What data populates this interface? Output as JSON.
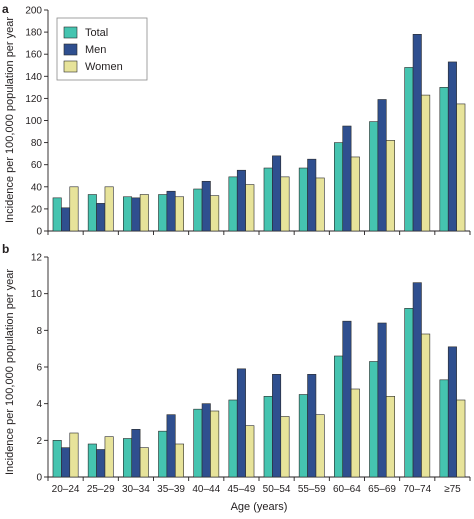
{
  "colors": {
    "Total": "#45c4b0",
    "Men": "#2f4f8f",
    "Women": "#e7e39a",
    "axis": "#231f20",
    "bar_stroke": "#2a2a2a"
  },
  "shared": {
    "xlabel": "Age (years)",
    "categories": [
      "20–24",
      "25–29",
      "30–34",
      "35–39",
      "40–44",
      "45–49",
      "50–54",
      "55–59",
      "60–64",
      "65–69",
      "70–74",
      "≥75"
    ]
  },
  "chart_data": [
    {
      "type": "bar",
      "panel_label": "a",
      "title": "",
      "ylabel": "Incidence per 100,000 population per year",
      "xlabel": "",
      "ylim": [
        0,
        200
      ],
      "yticks": [
        0,
        20,
        40,
        60,
        80,
        100,
        120,
        140,
        160,
        180,
        200
      ],
      "grid": false,
      "legend": "top-left",
      "categories": [
        "20–24",
        "25–29",
        "30–34",
        "35–39",
        "40–44",
        "45–49",
        "50–54",
        "55–59",
        "60–64",
        "65–69",
        "70–74",
        "≥75"
      ],
      "series": [
        {
          "name": "Total",
          "values": [
            30,
            33,
            31,
            33,
            38,
            49,
            57,
            57,
            80,
            99,
            148,
            130
          ]
        },
        {
          "name": "Men",
          "values": [
            21,
            25,
            30,
            36,
            45,
            55,
            68,
            65,
            95,
            119,
            178,
            153
          ]
        },
        {
          "name": "Women",
          "values": [
            40,
            40,
            33,
            31,
            32,
            42,
            49,
            48,
            67,
            82,
            123,
            115
          ]
        }
      ]
    },
    {
      "type": "bar",
      "panel_label": "b",
      "title": "",
      "ylabel": "Incidence per 100,000 population per year",
      "xlabel": "Age (years)",
      "ylim": [
        0,
        12
      ],
      "yticks": [
        0,
        2,
        4,
        6,
        8,
        10,
        12
      ],
      "grid": false,
      "legend": "",
      "categories": [
        "20–24",
        "25–29",
        "30–34",
        "35–39",
        "40–44",
        "45–49",
        "50–54",
        "55–59",
        "60–64",
        "65–69",
        "70–74",
        "≥75"
      ],
      "series": [
        {
          "name": "Total",
          "values": [
            2.0,
            1.8,
            2.1,
            2.5,
            3.7,
            4.2,
            4.4,
            4.5,
            6.6,
            6.3,
            9.2,
            5.3
          ]
        },
        {
          "name": "Men",
          "values": [
            1.6,
            1.5,
            2.6,
            3.4,
            4.0,
            5.9,
            5.6,
            5.6,
            8.5,
            8.4,
            10.6,
            7.1
          ]
        },
        {
          "name": "Women",
          "values": [
            2.4,
            2.2,
            1.6,
            1.8,
            3.6,
            2.8,
            3.3,
            3.4,
            4.8,
            4.4,
            7.8,
            4.2
          ]
        }
      ]
    }
  ]
}
